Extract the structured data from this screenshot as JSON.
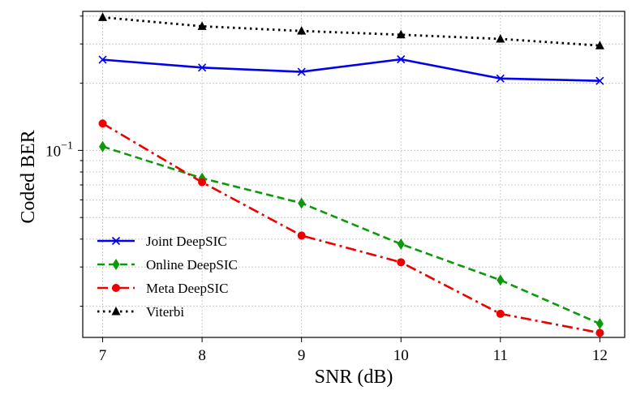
{
  "chart_data": {
    "type": "line",
    "title": "",
    "xlabel": "SNR (dB)",
    "ylabel": "Coded BER",
    "yscale": "log",
    "x": [
      7,
      8,
      9,
      10,
      11,
      12
    ],
    "xlim": [
      6.8,
      12.25
    ],
    "ylim": [
      0.0145,
      0.42
    ],
    "xticks": [
      "7",
      "8",
      "9",
      "10",
      "11",
      "12"
    ],
    "yticks": [
      {
        "value": 0.1,
        "base": "10",
        "exp": "−1"
      }
    ],
    "grid": true,
    "legend_position": "lower-left",
    "series": [
      {
        "name": "Joint DeepSIC",
        "color": "#0000ee",
        "dash": "solid",
        "marker": "x",
        "values": [
          0.255,
          0.235,
          0.225,
          0.256,
          0.21,
          0.205
        ]
      },
      {
        "name": "Online DeepSIC",
        "color": "#0c9a0c",
        "dash": "dashed",
        "marker": "diamond",
        "values": [
          0.104,
          0.075,
          0.058,
          0.038,
          0.0262,
          0.0167
        ]
      },
      {
        "name": "Meta DeepSIC",
        "color": "#ee0000",
        "dash": "dashdot",
        "marker": "circle",
        "values": [
          0.132,
          0.072,
          0.0415,
          0.0315,
          0.0185,
          0.0152
        ]
      },
      {
        "name": "Viterbi",
        "color": "#000000",
        "dash": "dotted",
        "marker": "triangle",
        "values": [
          0.395,
          0.36,
          0.343,
          0.33,
          0.316,
          0.295
        ]
      }
    ]
  }
}
